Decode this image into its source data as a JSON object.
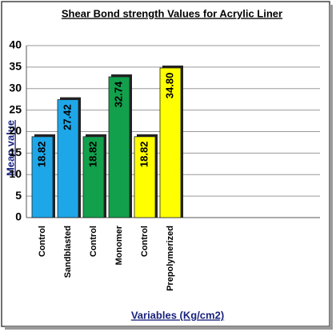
{
  "chart_data": {
    "type": "bar",
    "title": "Shear Bond strength Values for Acrylic Liner",
    "y_label": "Mean value",
    "x_label": "Variables (Kg/cm2)",
    "categories": [
      "Control",
      "Sandblasted",
      "Control",
      "Monomer",
      "Control",
      "Prepolymerized"
    ],
    "values": [
      18.82,
      27.42,
      18.82,
      32.74,
      18.82,
      34.8
    ],
    "value_labels": [
      "18.82",
      "27.42",
      "18.82",
      "32.74",
      "18.82",
      "34.80"
    ],
    "colors": [
      "#1ea7e8",
      "#1ea7e8",
      "#12a04c",
      "#12a04c",
      "#ffff00",
      "#ffff00"
    ],
    "ylim": [
      0,
      40
    ],
    "yticks": [
      0,
      5,
      10,
      15,
      20,
      25,
      30,
      35,
      40
    ],
    "grid": true
  }
}
